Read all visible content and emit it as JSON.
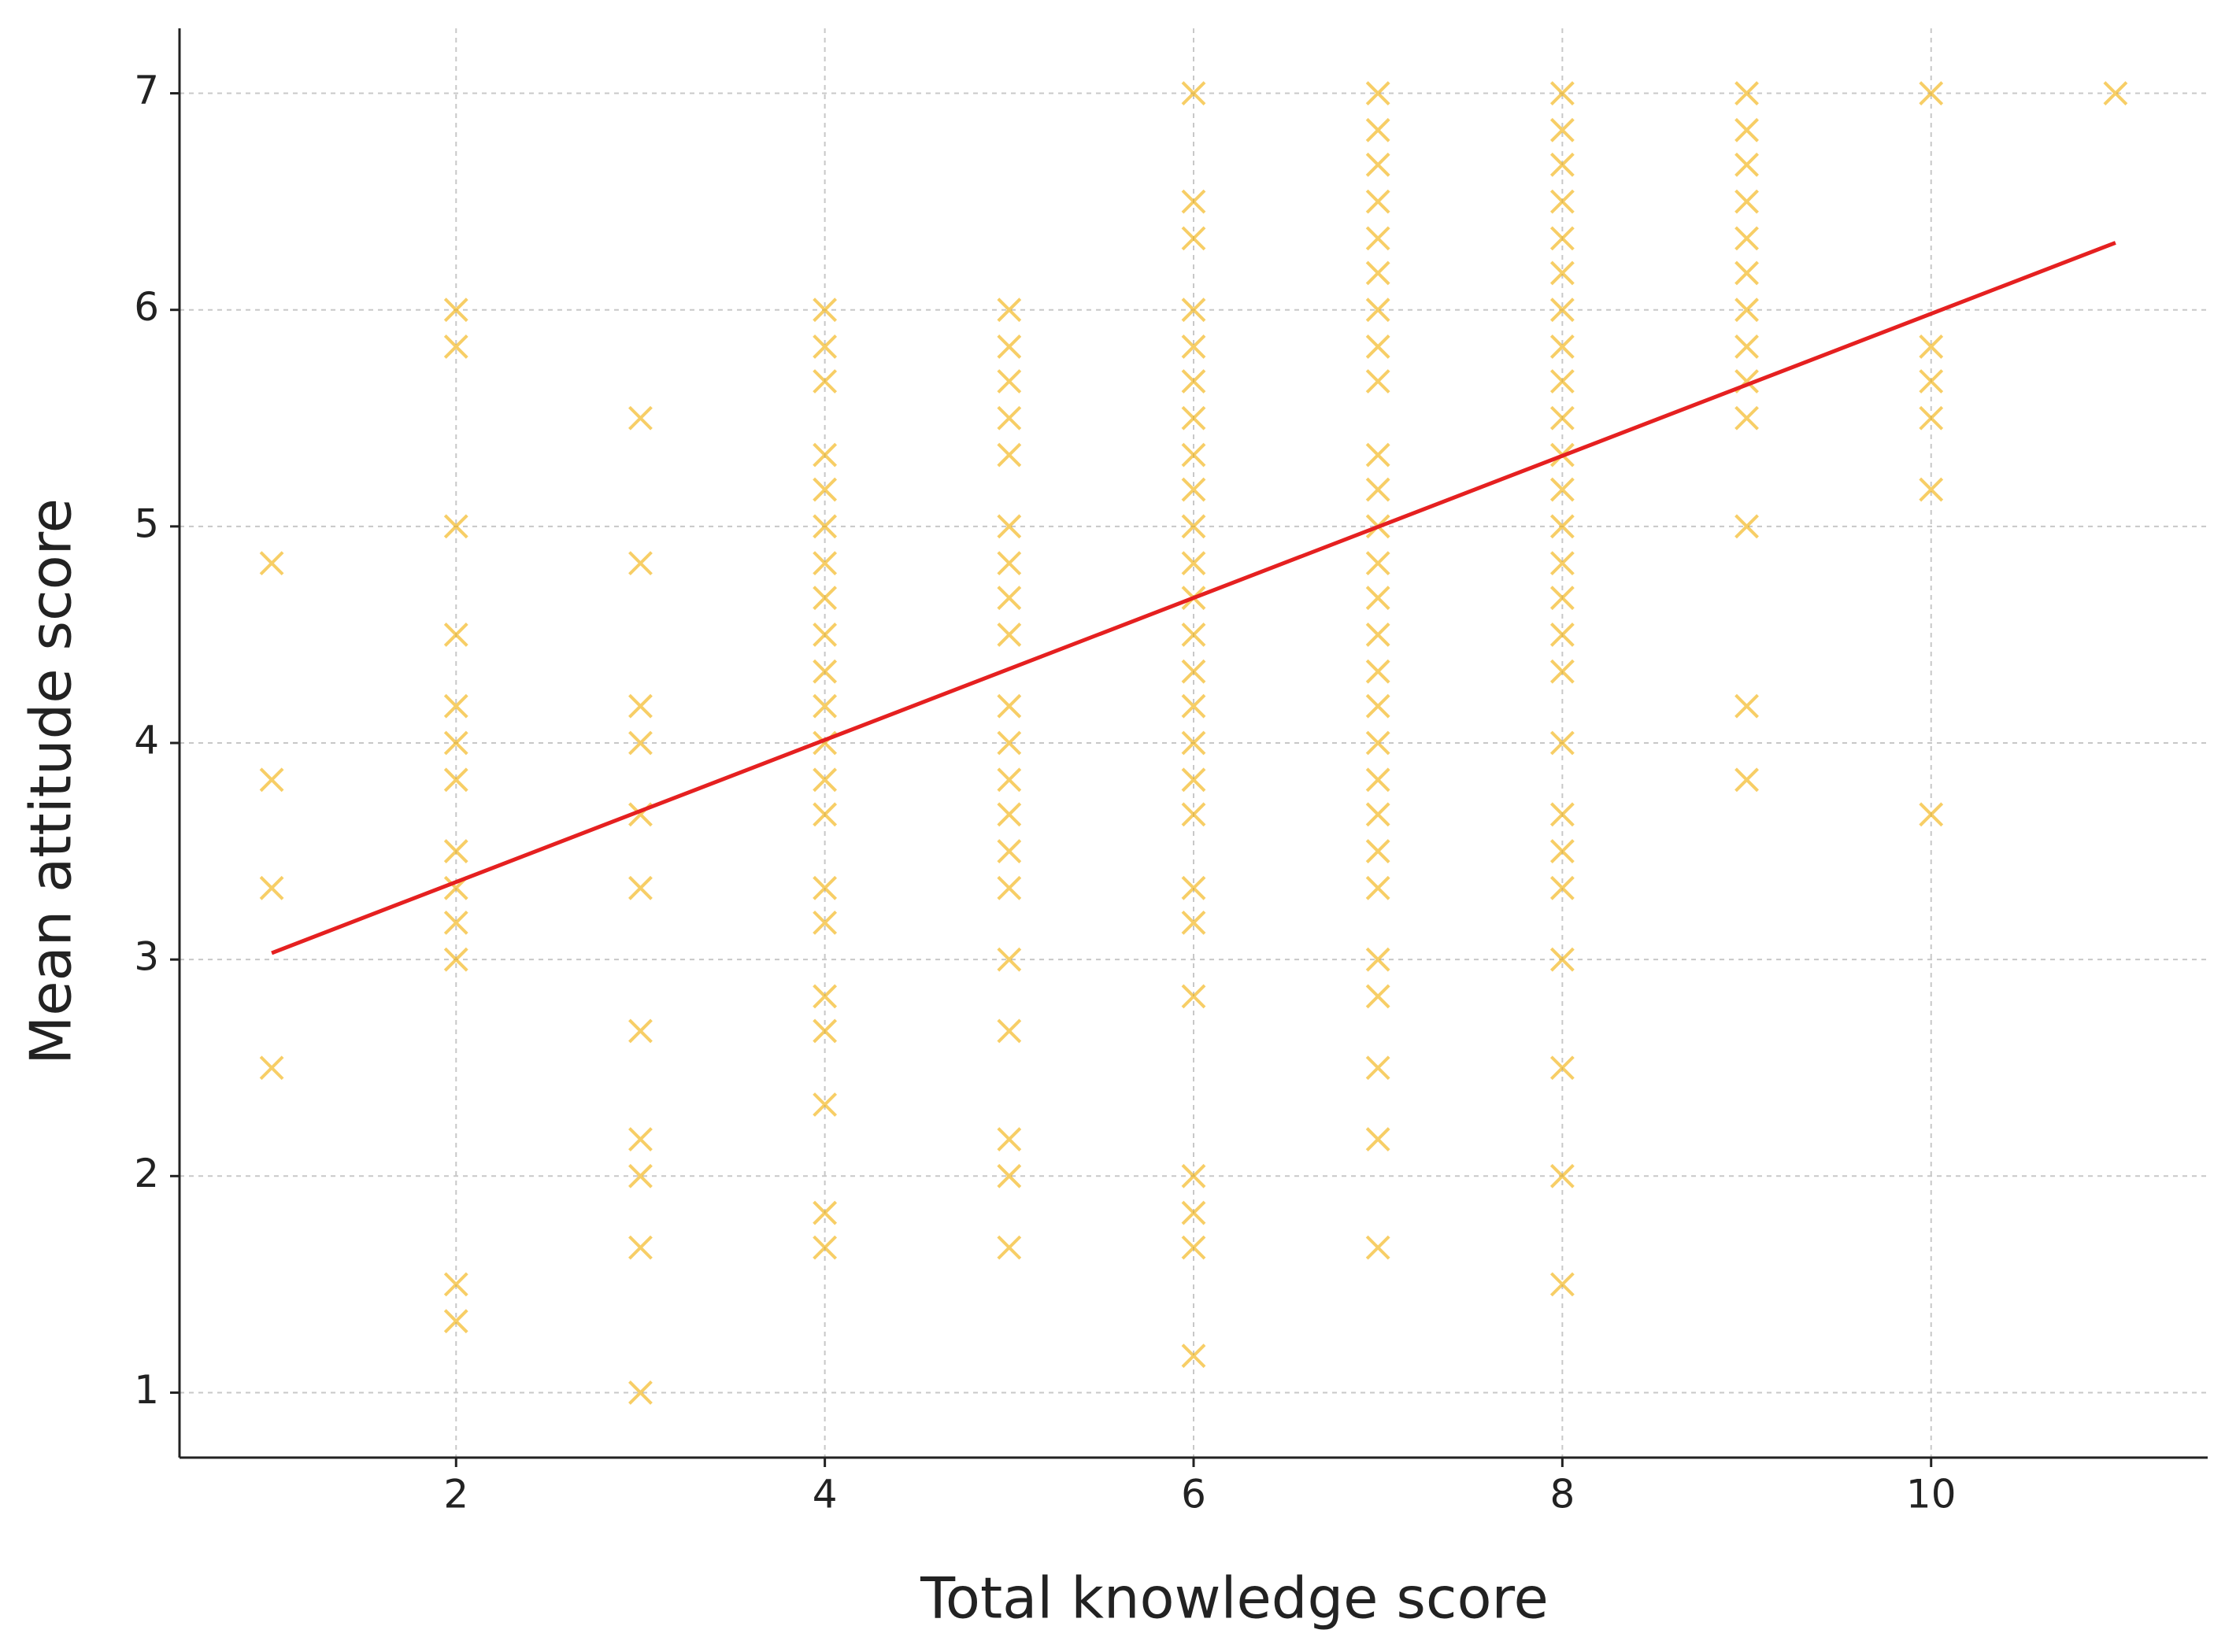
{
  "chart_data": {
    "type": "scatter",
    "xlabel": "Total knowledge score",
    "ylabel": "Mean attitude score",
    "xlim": [
      0.5,
      11.5
    ],
    "ylim": [
      0.7,
      7.3
    ],
    "xticks": [
      2,
      4,
      6,
      8,
      10
    ],
    "yticks": [
      1,
      2,
      3,
      4,
      5,
      6,
      7
    ],
    "grid": true,
    "series": [
      {
        "marker": "x",
        "color": "#f2ae00",
        "x": [
          1,
          1,
          1,
          1,
          2,
          2,
          2,
          2,
          2,
          2,
          2,
          2,
          2,
          2,
          2,
          2,
          2,
          3,
          3,
          3,
          3,
          3,
          3,
          3,
          3,
          3,
          3,
          3,
          4,
          4,
          4,
          4,
          4,
          4,
          4,
          4,
          4,
          4,
          4,
          4,
          4,
          4,
          4,
          4,
          4,
          4,
          4,
          4,
          4,
          5,
          5,
          5,
          5,
          5,
          5,
          5,
          5,
          5,
          5,
          5,
          5,
          5,
          5,
          5,
          5,
          5,
          5,
          5,
          5,
          6,
          6,
          6,
          6,
          6,
          6,
          6,
          6,
          6,
          6,
          6,
          6,
          6,
          6,
          6,
          6,
          6,
          6,
          6,
          6,
          6,
          6,
          6,
          6,
          6,
          7,
          7,
          7,
          7,
          7,
          7,
          7,
          7,
          7,
          7,
          7,
          7,
          7,
          7,
          7,
          7,
          7,
          7,
          7,
          7,
          7,
          7,
          7,
          7,
          7,
          7,
          7,
          8,
          8,
          8,
          8,
          8,
          8,
          8,
          8,
          8,
          8,
          8,
          8,
          8,
          8,
          8,
          8,
          8,
          8,
          8,
          8,
          8,
          8,
          8,
          8,
          8,
          9,
          9,
          9,
          9,
          9,
          9,
          9,
          9,
          9,
          9,
          9,
          9,
          9,
          10,
          10,
          10,
          10,
          10,
          10,
          11
        ],
        "values": [
          4.83,
          3.83,
          3.33,
          2.5,
          6,
          5.83,
          5,
          4.5,
          4.17,
          4,
          3.83,
          3.5,
          3.33,
          3.17,
          3,
          1.5,
          1.33,
          5.5,
          4.83,
          4.17,
          4,
          3.67,
          3.33,
          2.67,
          2.17,
          2,
          1.67,
          1,
          6,
          5.83,
          5.67,
          5.33,
          5.17,
          5,
          4.83,
          4.67,
          4.5,
          4.33,
          4.17,
          4,
          3.83,
          3.67,
          3.33,
          3.17,
          2.83,
          2.67,
          2.33,
          1.83,
          1.67,
          6,
          5.83,
          5.67,
          5.5,
          5.33,
          5,
          4.83,
          4.67,
          4.5,
          4.17,
          4,
          3.83,
          3.67,
          3.5,
          3.33,
          3,
          2.67,
          2.17,
          2,
          1.67,
          7,
          6.5,
          6.33,
          6,
          5.83,
          5.67,
          5.5,
          5.33,
          5.17,
          5,
          4.83,
          4.67,
          4.5,
          4.33,
          4.17,
          4,
          3.83,
          3.67,
          3.33,
          3.17,
          2.83,
          2,
          1.83,
          1.67,
          1.17,
          7,
          6.83,
          6.67,
          6.5,
          6.33,
          6.17,
          6,
          5.83,
          5.67,
          5.33,
          5.17,
          5,
          4.83,
          4.67,
          4.5,
          4.33,
          4.17,
          4,
          3.83,
          3.67,
          3.5,
          3.33,
          3,
          2.83,
          2.5,
          2.17,
          1.67,
          7,
          6.83,
          6.67,
          6.5,
          6.33,
          6.17,
          6,
          5.83,
          5.67,
          5.5,
          5.33,
          5.17,
          5,
          4.83,
          4.67,
          4.5,
          4.33,
          4,
          3.67,
          3.5,
          3.33,
          3,
          2.5,
          2,
          1.5,
          7,
          6.83,
          6.67,
          6.5,
          6.33,
          6.17,
          6,
          5.83,
          5.67,
          5.5,
          5,
          4.17,
          3.83,
          7,
          5.83,
          5.67,
          5.5,
          5.17,
          3.67,
          7
        ]
      },
      {
        "marker": "line",
        "color": "#e52020",
        "x": [
          1,
          11
        ],
        "values": [
          3.03,
          6.31
        ]
      }
    ]
  }
}
